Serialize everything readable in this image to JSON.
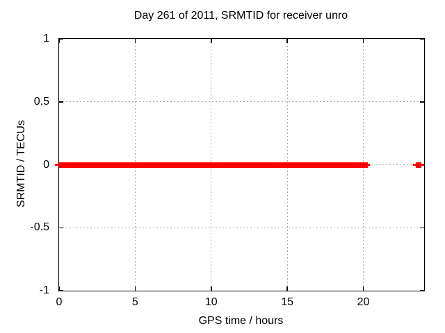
{
  "chart_data": {
    "type": "line",
    "title": "Day 261 of 2011, SRMTID for receiver unro",
    "xlabel": "GPS time / hours",
    "ylabel": "SRMTID / TECUs",
    "xlim": [
      0,
      24
    ],
    "ylim": [
      -1,
      1
    ],
    "x_ticks": [
      {
        "value": 0,
        "label": "0"
      },
      {
        "value": 5,
        "label": "5"
      },
      {
        "value": 10,
        "label": "10"
      },
      {
        "value": 15,
        "label": "15"
      },
      {
        "value": 20,
        "label": "20"
      }
    ],
    "y_ticks": [
      {
        "value": -1,
        "label": "-1"
      },
      {
        "value": -0.5,
        "label": "-0.5"
      },
      {
        "value": 0,
        "label": "0"
      },
      {
        "value": 0.5,
        "label": "0.5"
      },
      {
        "value": 1,
        "label": "1"
      }
    ],
    "grid": true,
    "legend": "none",
    "series_name": "SRMTID",
    "series_value": 0,
    "segments": [
      {
        "x_start": -0.27,
        "x_end": 0,
        "y": 0,
        "style": "thin"
      },
      {
        "x_start": 0,
        "x_end": 20.3,
        "y": 0,
        "style": "thick"
      },
      {
        "x_start": 20.3,
        "x_end": 20.45,
        "y": 0,
        "style": "thin"
      },
      {
        "x_start": 23.25,
        "x_end": 24.0,
        "y": 0,
        "style": "thin"
      },
      {
        "x_start": 23.45,
        "x_end": 23.83,
        "y": 0,
        "style": "thick"
      }
    ],
    "colors": {
      "line": "#ff0000",
      "grid": "#a6a6a6",
      "axis": "#000000",
      "text": "#000000",
      "background": "#ffffff"
    }
  }
}
